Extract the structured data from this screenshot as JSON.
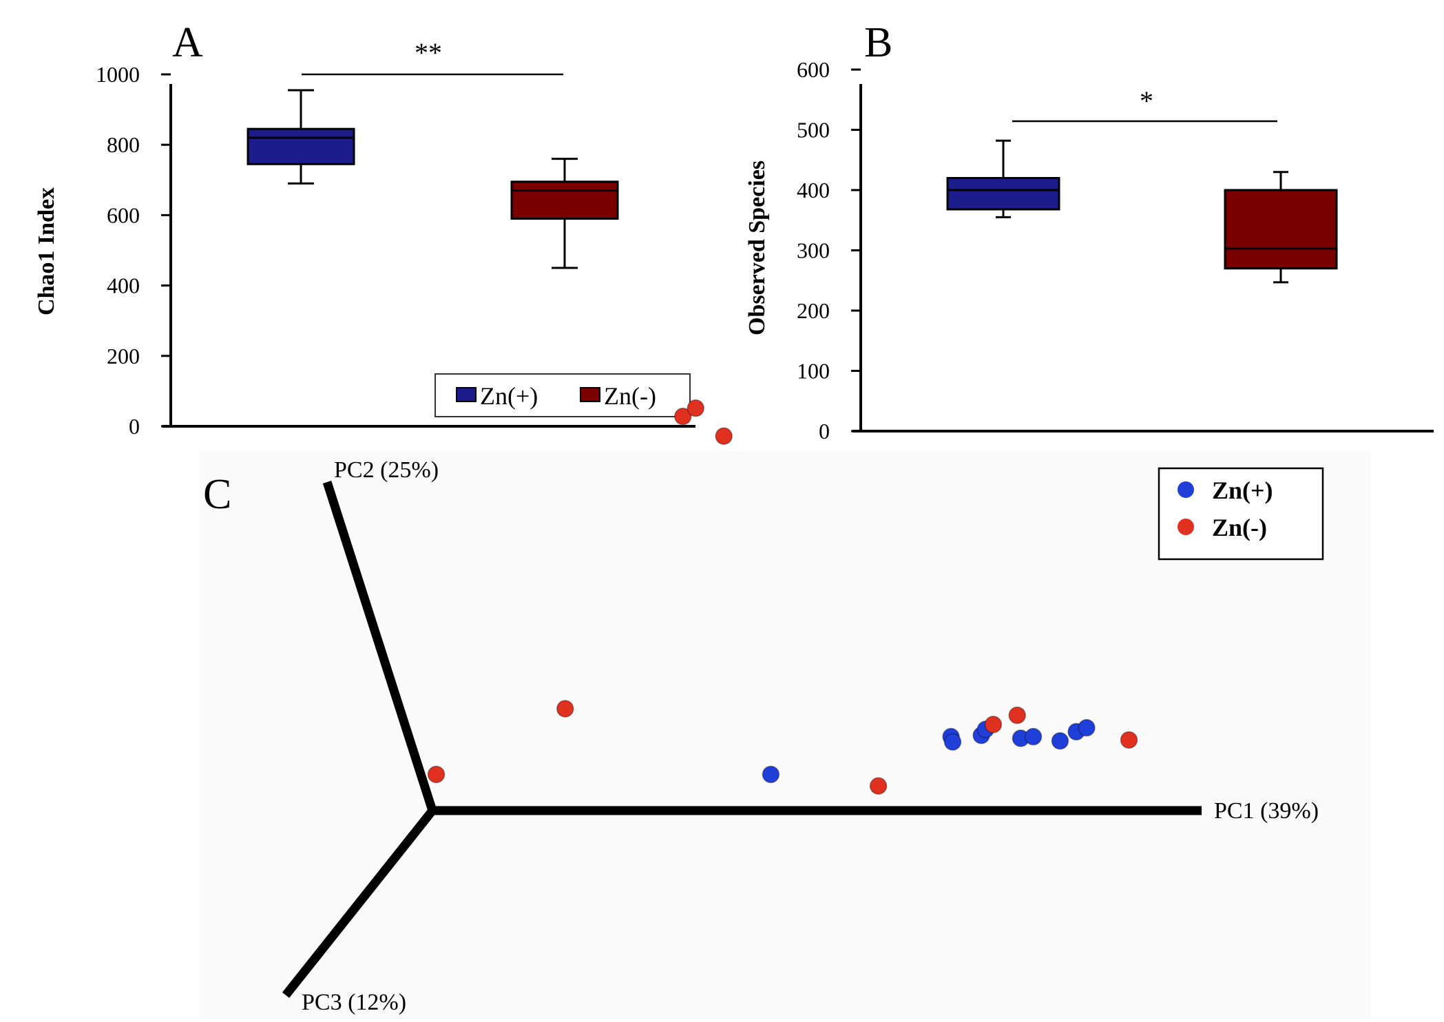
{
  "chart_data": [
    {
      "panel": "A",
      "type": "box",
      "ylabel": "Chao1 Index",
      "ylim": [
        0,
        1000
      ],
      "yticks": [
        0,
        200,
        400,
        600,
        800,
        1000
      ],
      "significance": "**",
      "legend": [
        "Zn(+)",
        "Zn(-)"
      ],
      "series": [
        {
          "name": "Zn(+)",
          "color": "#1c1c8c",
          "min": 690,
          "q1": 745,
          "median": 820,
          "q3": 845,
          "max": 955
        },
        {
          "name": "Zn(-)",
          "color": "#7a0000",
          "min": 450,
          "q1": 590,
          "median": 670,
          "q3": 695,
          "max": 760
        }
      ]
    },
    {
      "panel": "B",
      "type": "box",
      "ylabel": "Observed Species",
      "ylim": [
        0,
        600
      ],
      "yticks": [
        0,
        100,
        200,
        300,
        400,
        500,
        600
      ],
      "significance": "*",
      "series": [
        {
          "name": "Zn(+)",
          "color": "#1c1c8c",
          "min": 355,
          "q1": 368,
          "median": 400,
          "q3": 420,
          "max": 482
        },
        {
          "name": "Zn(-)",
          "color": "#7a0000",
          "min": 247,
          "q1": 270,
          "median": 303,
          "q3": 400,
          "max": 430
        }
      ]
    },
    {
      "panel": "C",
      "type": "scatter",
      "subtype": "PCoA 3D",
      "axes": [
        "PC1 (39%)",
        "PC2 (25%)",
        "PC3 (12%)"
      ],
      "legend": [
        "Zn(+)",
        "Zn(-)"
      ],
      "series": [
        {
          "name": "Zn(+)",
          "color": "#1f3fd8",
          "points": [
            [
              0.455,
              0.11
            ],
            [
              0.705,
              0.225
            ],
            [
              0.705,
              0.209
            ],
            [
              0.745,
              0.229
            ],
            [
              0.753,
              0.247
            ],
            [
              0.795,
              0.22
            ],
            [
              0.812,
              0.225
            ],
            [
              0.845,
              0.212
            ],
            [
              0.87,
              0.24
            ],
            [
              0.885,
              0.252
            ]
          ]
        },
        {
          "name": "Zn(-)",
          "color": "#e03020",
          "points": [
            [
              0.02,
              0.11
            ],
            [
              0.215,
              0.31
            ],
            [
              0.59,
              0.075
            ],
            [
              0.765,
              0.262
            ],
            [
              0.8,
              0.29
            ],
            [
              0.935,
              0.215
            ],
            [
              0.49,
              1.2
            ],
            [
              0.51,
              1.225
            ],
            [
              0.535,
              1.14
            ]
          ]
        }
      ]
    }
  ]
}
